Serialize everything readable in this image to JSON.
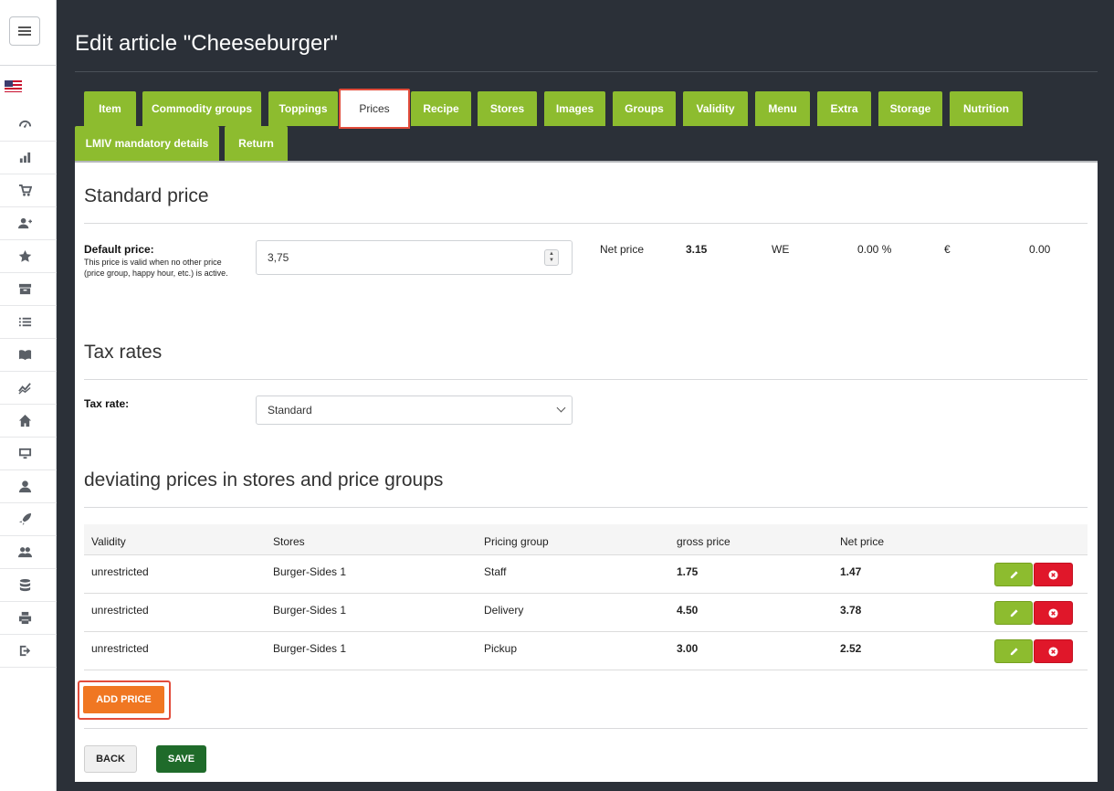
{
  "page": {
    "title": "Edit article \"Cheeseburger\""
  },
  "sidebar": {
    "icons": [
      "speedometer-icon",
      "bar-chart-icon",
      "cart-icon",
      "user-plus-icon",
      "star-icon",
      "archive-icon",
      "list-icon",
      "book-icon",
      "trend-chart-icon",
      "home-icon",
      "monitor-icon",
      "user-icon",
      "rocket-icon",
      "users-icon",
      "database-icon",
      "printer-icon",
      "logout-icon"
    ]
  },
  "tabs": [
    "Item",
    "Commodity groups",
    "Toppings",
    "Prices",
    "Recipe",
    "Stores",
    "Images",
    "Groups",
    "Validity",
    "Menu",
    "Extra",
    "Storage",
    "Nutrition",
    "LMIV mandatory details",
    "Return"
  ],
  "active_tab": "Prices",
  "standard_price": {
    "heading": "Standard price",
    "label": "Default price:",
    "help": "This price is valid when no other price (price group, happy hour, etc.) is active.",
    "value": "3,75",
    "net_label": "Net price",
    "net_value": "3.15",
    "unit": "WE",
    "percent": "0.00 %",
    "currency": "€",
    "amount": "0.00"
  },
  "tax": {
    "heading": "Tax rates",
    "label": "Tax rate:",
    "value": "Standard"
  },
  "deviating": {
    "heading": "deviating prices in stores and price groups",
    "columns": [
      "Validity",
      "Stores",
      "Pricing group",
      "gross price",
      "Net price"
    ],
    "rows": [
      {
        "validity": "unrestricted",
        "store": "Burger-Sides 1",
        "group": "Staff",
        "gross": "1.75",
        "net": "1.47"
      },
      {
        "validity": "unrestricted",
        "store": "Burger-Sides 1",
        "group": "Delivery",
        "gross": "4.50",
        "net": "3.78"
      },
      {
        "validity": "unrestricted",
        "store": "Burger-Sides 1",
        "group": "Pickup",
        "gross": "3.00",
        "net": "2.52"
      }
    ]
  },
  "buttons": {
    "add_price": "ADD PRICE",
    "back": "BACK",
    "save": "SAVE"
  },
  "colors": {
    "tab_green": "#8dbc2f",
    "add_orange": "#f07722",
    "save_green": "#1f6b2a",
    "delete_red": "#e0172a",
    "highlight": "#e24c3b"
  }
}
